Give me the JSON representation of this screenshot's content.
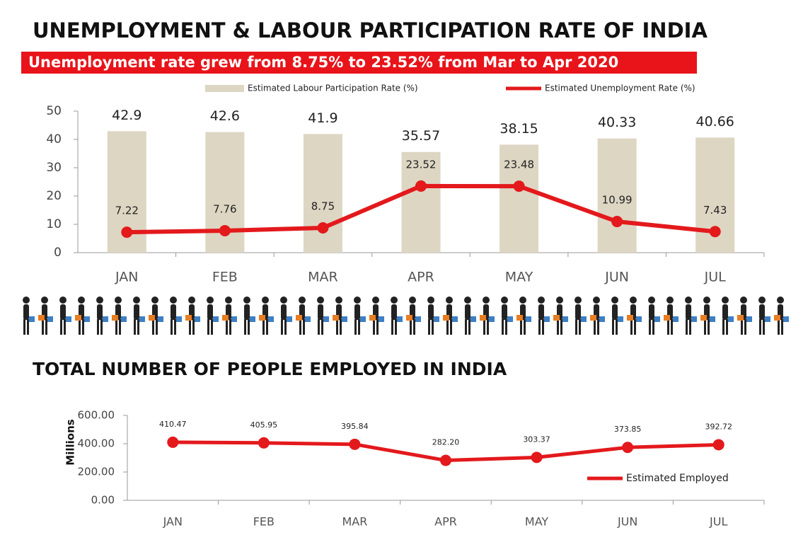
{
  "chart_data": [
    {
      "type": "combo",
      "title": "UNEMPLOYMENT & LABOUR PARTICIPATION RATE OF INDIA",
      "subtitle": "Unemployment rate grew from 8.75% to 23.52% from Mar to Apr 2020",
      "categories": [
        "JAN",
        "FEB",
        "MAR",
        "APR",
        "MAY",
        "JUN",
        "JUL"
      ],
      "series": [
        {
          "name": "Estimated Labour Participation Rate (%)",
          "type": "bar",
          "color": "#ddd6c3",
          "values": [
            42.9,
            42.6,
            41.9,
            35.57,
            38.15,
            40.33,
            40.66
          ]
        },
        {
          "name": "Estimated Unemployment Rate (%)",
          "type": "line",
          "color": "#e3191c",
          "values": [
            7.22,
            7.76,
            8.75,
            23.52,
            23.48,
            10.99,
            7.43
          ]
        }
      ],
      "ylim": [
        0,
        50
      ],
      "yticks": [
        0,
        10,
        20,
        30,
        40,
        50
      ],
      "grid": false,
      "legend": "top-right"
    },
    {
      "type": "line",
      "title": "TOTAL NUMBER OF PEOPLE EMPLOYED IN INDIA",
      "y_label": "Millions",
      "categories": [
        "JAN",
        "FEB",
        "MAR",
        "APR",
        "MAY",
        "JUN",
        "JUL"
      ],
      "series": [
        {
          "name": "Estimated Employed",
          "type": "line",
          "color": "#e3191c",
          "values": [
            410.47,
            405.95,
            395.84,
            282.2,
            303.37,
            373.85,
            392.72
          ],
          "value_labels": [
            "410.47",
            "405.95",
            "395.84",
            "282.20",
            "303.37",
            "373.85",
            "392.72"
          ]
        }
      ],
      "ylim": [
        0,
        600
      ],
      "yticks": [
        {
          "value": 0,
          "label": "0.00"
        },
        {
          "value": 200,
          "label": "200.00"
        },
        {
          "value": 400,
          "label": "400.00"
        },
        {
          "value": 600,
          "label": "600.00"
        }
      ],
      "grid": false,
      "legend": "bottom-right"
    }
  ]
}
